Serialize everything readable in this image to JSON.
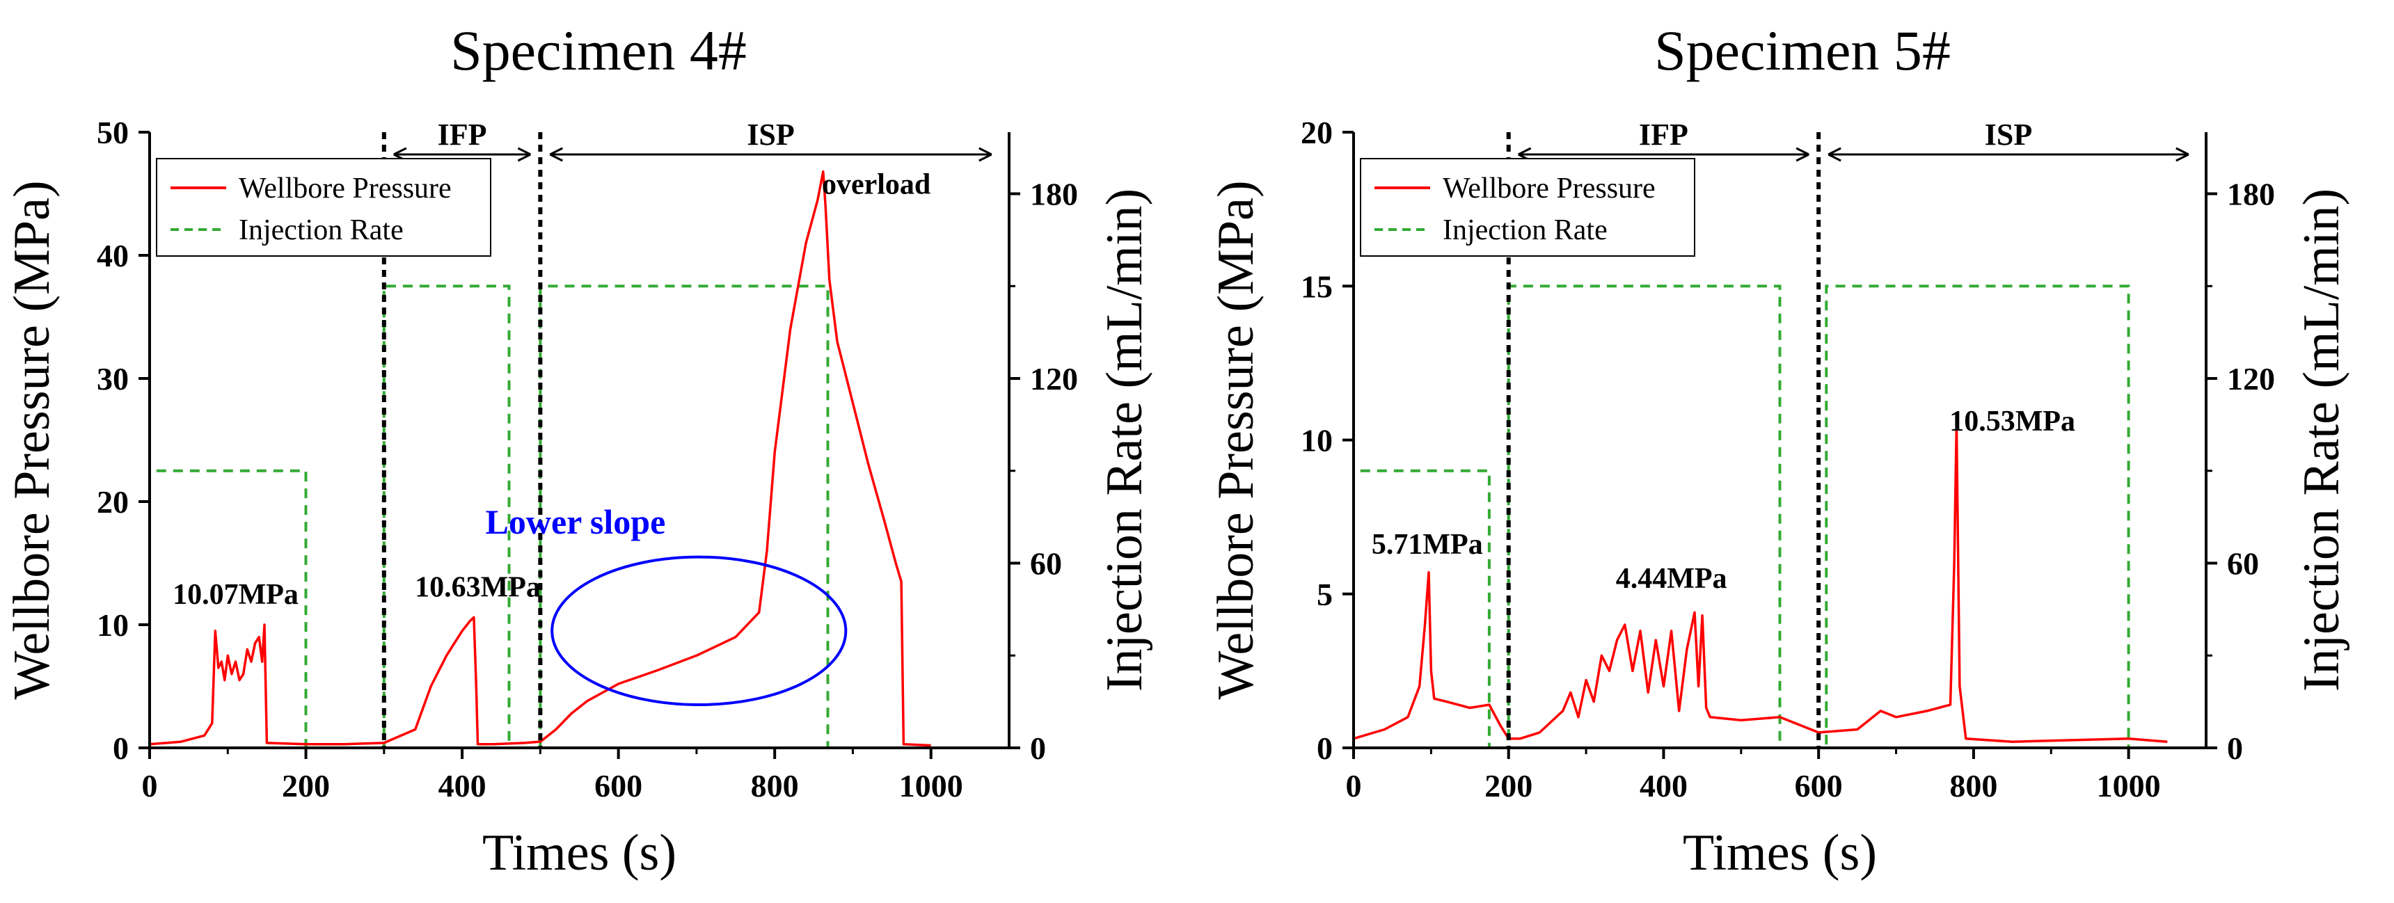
{
  "colors": {
    "pressure": "#ff0000",
    "rate": "#33aa33",
    "boundary": "#000000",
    "ellipse": "#0000ff",
    "lower_slope_text": "#0000ff"
  },
  "chart_data": [
    {
      "type": "line",
      "title": "Specimen 4#",
      "xlabel": "Times (s)",
      "ylabel": "Wellbore Pressure (MPa)",
      "y2label": "Injection Rate (mL/min)",
      "xlim": [
        0,
        1100
      ],
      "ylim": [
        0,
        50
      ],
      "y2lim": [
        0,
        200
      ],
      "xticks": [
        0,
        200,
        400,
        600,
        800,
        1000
      ],
      "yticks": [
        0,
        10,
        20,
        30,
        40,
        50
      ],
      "y2ticks": [
        0,
        60,
        120,
        180
      ],
      "legend": {
        "position": "top-left",
        "entries": [
          "Wellbore Pressure",
          "Injection Rate"
        ]
      },
      "phases": [
        {
          "label": "IFP",
          "start": 300,
          "end": 500
        },
        {
          "label": "ISP",
          "start": 500,
          "end": 1090
        }
      ],
      "boundaries": [
        300,
        500
      ],
      "series": [
        {
          "name": "Wellbore Pressure",
          "axis": "left",
          "style": "solid",
          "x": [
            0,
            40,
            70,
            80,
            84,
            88,
            92,
            96,
            100,
            105,
            110,
            115,
            120,
            125,
            130,
            135,
            140,
            144,
            147,
            150,
            200,
            250,
            300,
            340,
            360,
            380,
            400,
            410,
            415,
            418,
            420,
            440,
            480,
            498,
            500,
            520,
            540,
            560,
            580,
            600,
            650,
            700,
            750,
            780,
            790,
            800,
            820,
            840,
            855,
            862,
            865,
            870,
            880,
            900,
            920,
            940,
            955,
            962,
            965,
            1000
          ],
          "y": [
            0.3,
            0.5,
            1.0,
            2.0,
            9.5,
            6.5,
            7.0,
            5.5,
            7.5,
            6.0,
            7.0,
            5.5,
            6.0,
            8.0,
            7.0,
            8.5,
            9.0,
            7.0,
            10.0,
            0.4,
            0.3,
            0.3,
            0.4,
            1.5,
            5.0,
            7.5,
            9.5,
            10.3,
            10.6,
            5.0,
            0.3,
            0.3,
            0.4,
            0.5,
            0.5,
            1.5,
            2.8,
            3.8,
            4.5,
            5.2,
            6.3,
            7.5,
            9.0,
            11.0,
            16.0,
            24.0,
            34.0,
            41.0,
            44.5,
            46.8,
            44.0,
            38.0,
            33.0,
            28.0,
            23.0,
            18.5,
            15.0,
            13.5,
            0.3,
            0.2
          ]
        },
        {
          "name": "Injection Rate",
          "axis": "right",
          "style": "dashed",
          "x": [
            0,
            0,
            200,
            200,
            300,
            300,
            460,
            460,
            500,
            500,
            868,
            868,
            1000
          ],
          "y": [
            0,
            90,
            90,
            0,
            0,
            150,
            150,
            0,
            0,
            150,
            150,
            0,
            0
          ]
        }
      ],
      "annotations": [
        {
          "text": "10.07MPa",
          "x": 110,
          "y": 11.7
        },
        {
          "text": "10.63MPa",
          "x": 420,
          "y": 12.3
        },
        {
          "text": "overload",
          "x": 930,
          "y": 45.0
        },
        {
          "text": "Lower slope",
          "x": 545,
          "y": 17.4
        }
      ],
      "ellipse": {
        "cx": 703,
        "cy": 9.5,
        "rx": 188,
        "ry": 6.0
      }
    },
    {
      "type": "line",
      "title": "Specimen 5#",
      "xlabel": "Times (s)",
      "ylabel": "Wellbore Pressure (MPa)",
      "y2label": "Injection Rate (mL/min)",
      "xlim": [
        0,
        1100
      ],
      "ylim": [
        0,
        20
      ],
      "y2lim": [
        0,
        200
      ],
      "xticks": [
        0,
        200,
        400,
        600,
        800,
        1000
      ],
      "yticks": [
        0,
        5,
        10,
        15,
        20
      ],
      "y2ticks": [
        0,
        60,
        120,
        180
      ],
      "legend": {
        "position": "top-left",
        "entries": [
          "Wellbore Pressure",
          "Injection Rate"
        ]
      },
      "phases": [
        {
          "label": "IFP",
          "start": 200,
          "end": 600
        },
        {
          "label": "ISP",
          "start": 600,
          "end": 1090
        }
      ],
      "boundaries": [
        200,
        600
      ],
      "series": [
        {
          "name": "Wellbore Pressure",
          "axis": "left",
          "style": "solid",
          "x": [
            0,
            40,
            70,
            85,
            92,
            97,
            100,
            104,
            120,
            150,
            175,
            190,
            200,
            215,
            240,
            270,
            280,
            290,
            300,
            310,
            320,
            330,
            340,
            350,
            360,
            370,
            380,
            390,
            400,
            410,
            420,
            430,
            440,
            445,
            450,
            455,
            460,
            500,
            550,
            600,
            650,
            680,
            700,
            740,
            770,
            775,
            778,
            782,
            790,
            850,
            1000,
            1050
          ],
          "y": [
            0.3,
            0.6,
            1.0,
            2.0,
            4.0,
            5.7,
            2.5,
            1.6,
            1.5,
            1.3,
            1.4,
            0.7,
            0.3,
            0.3,
            0.5,
            1.2,
            1.8,
            1.0,
            2.2,
            1.5,
            3.0,
            2.5,
            3.5,
            4.0,
            2.5,
            3.8,
            1.8,
            3.5,
            2.0,
            3.8,
            1.2,
            3.2,
            4.4,
            2.0,
            4.3,
            1.3,
            1.0,
            0.9,
            1.0,
            0.5,
            0.6,
            1.2,
            1.0,
            1.2,
            1.4,
            6.0,
            10.53,
            2.0,
            0.3,
            0.2,
            0.3,
            0.2
          ]
        },
        {
          "name": "Injection Rate",
          "axis": "right",
          "style": "dashed",
          "x": [
            0,
            0,
            175,
            175,
            200,
            200,
            550,
            550,
            610,
            610,
            1000,
            1000,
            1050
          ],
          "y": [
            0,
            90,
            90,
            0,
            0,
            150,
            150,
            0,
            0,
            150,
            150,
            0,
            0
          ]
        }
      ],
      "annotations": [
        {
          "text": "5.71MPa",
          "x": 95,
          "y": 6.3
        },
        {
          "text": "4.44MPa",
          "x": 410,
          "y": 5.2
        },
        {
          "text": "10.53MPa",
          "x": 850,
          "y": 10.3
        }
      ]
    }
  ]
}
